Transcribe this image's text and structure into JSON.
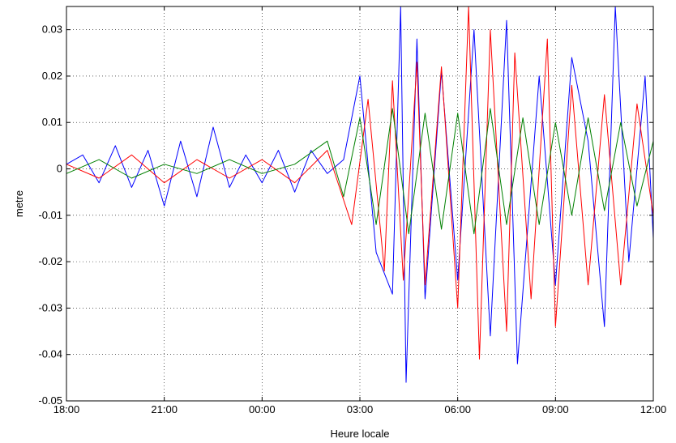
{
  "chart_data": {
    "type": "line",
    "title": "",
    "xlabel": "Heure locale",
    "ylabel": "metre",
    "x_range": [
      "18:00",
      "12:00"
    ],
    "ylim": [
      -0.05,
      0.035
    ],
    "grid": true,
    "legend": "none",
    "x_tick_labels": [
      "18:00",
      "21:00",
      "00:00",
      "03:00",
      "06:00",
      "09:00",
      "12:00"
    ],
    "y_tick_values": [
      0.03,
      0.02,
      0.01,
      0,
      -0.01,
      -0.02,
      -0.03,
      -0.04,
      -0.05
    ],
    "y_tick_labels": [
      "0.03",
      "0.02",
      "0.01",
      "0",
      "-0.01",
      "-0.02",
      "-0.03",
      "-0.04",
      "-0.05"
    ],
    "series": [
      {
        "color": "#0000ff",
        "points": [
          [
            "18:00",
            0.001
          ],
          [
            "18:30",
            0.003
          ],
          [
            "19:00",
            -0.003
          ],
          [
            "19:30",
            0.005
          ],
          [
            "20:00",
            -0.004
          ],
          [
            "20:30",
            0.004
          ],
          [
            "21:00",
            -0.008
          ],
          [
            "21:30",
            0.006
          ],
          [
            "22:00",
            -0.006
          ],
          [
            "22:30",
            0.009
          ],
          [
            "23:00",
            -0.004
          ],
          [
            "23:30",
            0.003
          ],
          [
            "00:00",
            -0.003
          ],
          [
            "00:30",
            0.004
          ],
          [
            "01:00",
            -0.005
          ],
          [
            "01:30",
            0.004
          ],
          [
            "02:00",
            -0.001
          ],
          [
            "02:30",
            0.002
          ],
          [
            "03:00",
            0.02
          ],
          [
            "03:30",
            -0.018
          ],
          [
            "04:00",
            -0.027
          ],
          [
            "04:15",
            0.035
          ],
          [
            "04:25",
            -0.046
          ],
          [
            "04:45",
            0.028
          ],
          [
            "05:00",
            -0.028
          ],
          [
            "05:30",
            0.021
          ],
          [
            "06:00",
            -0.024
          ],
          [
            "06:30",
            0.03
          ],
          [
            "07:00",
            -0.036
          ],
          [
            "07:30",
            0.032
          ],
          [
            "07:50",
            -0.042
          ],
          [
            "08:30",
            0.02
          ],
          [
            "09:00",
            -0.025
          ],
          [
            "09:30",
            0.024
          ],
          [
            "10:00",
            0.006
          ],
          [
            "10:30",
            -0.034
          ],
          [
            "10:50",
            0.035
          ],
          [
            "11:15",
            -0.02
          ],
          [
            "11:45",
            0.02
          ],
          [
            "12:00",
            -0.015
          ]
        ]
      },
      {
        "color": "#ff0000",
        "points": [
          [
            "18:00",
            0.001
          ],
          [
            "19:00",
            -0.002
          ],
          [
            "20:00",
            0.003
          ],
          [
            "21:00",
            -0.003
          ],
          [
            "22:00",
            0.002
          ],
          [
            "23:00",
            -0.002
          ],
          [
            "00:00",
            0.002
          ],
          [
            "01:00",
            -0.003
          ],
          [
            "02:00",
            0.004
          ],
          [
            "02:45",
            -0.012
          ],
          [
            "03:15",
            0.015
          ],
          [
            "03:45",
            -0.022
          ],
          [
            "04:00",
            0.019
          ],
          [
            "04:20",
            -0.024
          ],
          [
            "04:45",
            0.023
          ],
          [
            "05:00",
            -0.025
          ],
          [
            "05:30",
            0.022
          ],
          [
            "06:00",
            -0.03
          ],
          [
            "06:20",
            0.035
          ],
          [
            "06:40",
            -0.041
          ],
          [
            "07:00",
            0.03
          ],
          [
            "07:30",
            -0.035
          ],
          [
            "07:45",
            0.025
          ],
          [
            "08:15",
            -0.028
          ],
          [
            "08:45",
            0.028
          ],
          [
            "09:00",
            -0.034
          ],
          [
            "09:30",
            0.018
          ],
          [
            "10:00",
            -0.025
          ],
          [
            "10:30",
            0.016
          ],
          [
            "11:00",
            -0.025
          ],
          [
            "11:30",
            0.014
          ],
          [
            "12:00",
            -0.01
          ]
        ]
      },
      {
        "color": "#008000",
        "points": [
          [
            "18:00",
            -0.001
          ],
          [
            "19:00",
            0.002
          ],
          [
            "20:00",
            -0.002
          ],
          [
            "21:00",
            0.001
          ],
          [
            "22:00",
            -0.001
          ],
          [
            "23:00",
            0.002
          ],
          [
            "00:00",
            -0.001
          ],
          [
            "01:00",
            0.001
          ],
          [
            "02:00",
            0.006
          ],
          [
            "02:30",
            -0.006
          ],
          [
            "03:00",
            0.011
          ],
          [
            "03:30",
            -0.012
          ],
          [
            "04:00",
            0.013
          ],
          [
            "04:30",
            -0.014
          ],
          [
            "05:00",
            0.012
          ],
          [
            "05:30",
            -0.013
          ],
          [
            "06:00",
            0.012
          ],
          [
            "06:30",
            -0.014
          ],
          [
            "07:00",
            0.013
          ],
          [
            "07:30",
            -0.012
          ],
          [
            "08:00",
            0.011
          ],
          [
            "08:30",
            -0.012
          ],
          [
            "09:00",
            0.01
          ],
          [
            "09:30",
            -0.01
          ],
          [
            "10:00",
            0.011
          ],
          [
            "10:30",
            -0.009
          ],
          [
            "11:00",
            0.01
          ],
          [
            "11:30",
            -0.008
          ],
          [
            "12:00",
            0.006
          ]
        ]
      }
    ]
  }
}
